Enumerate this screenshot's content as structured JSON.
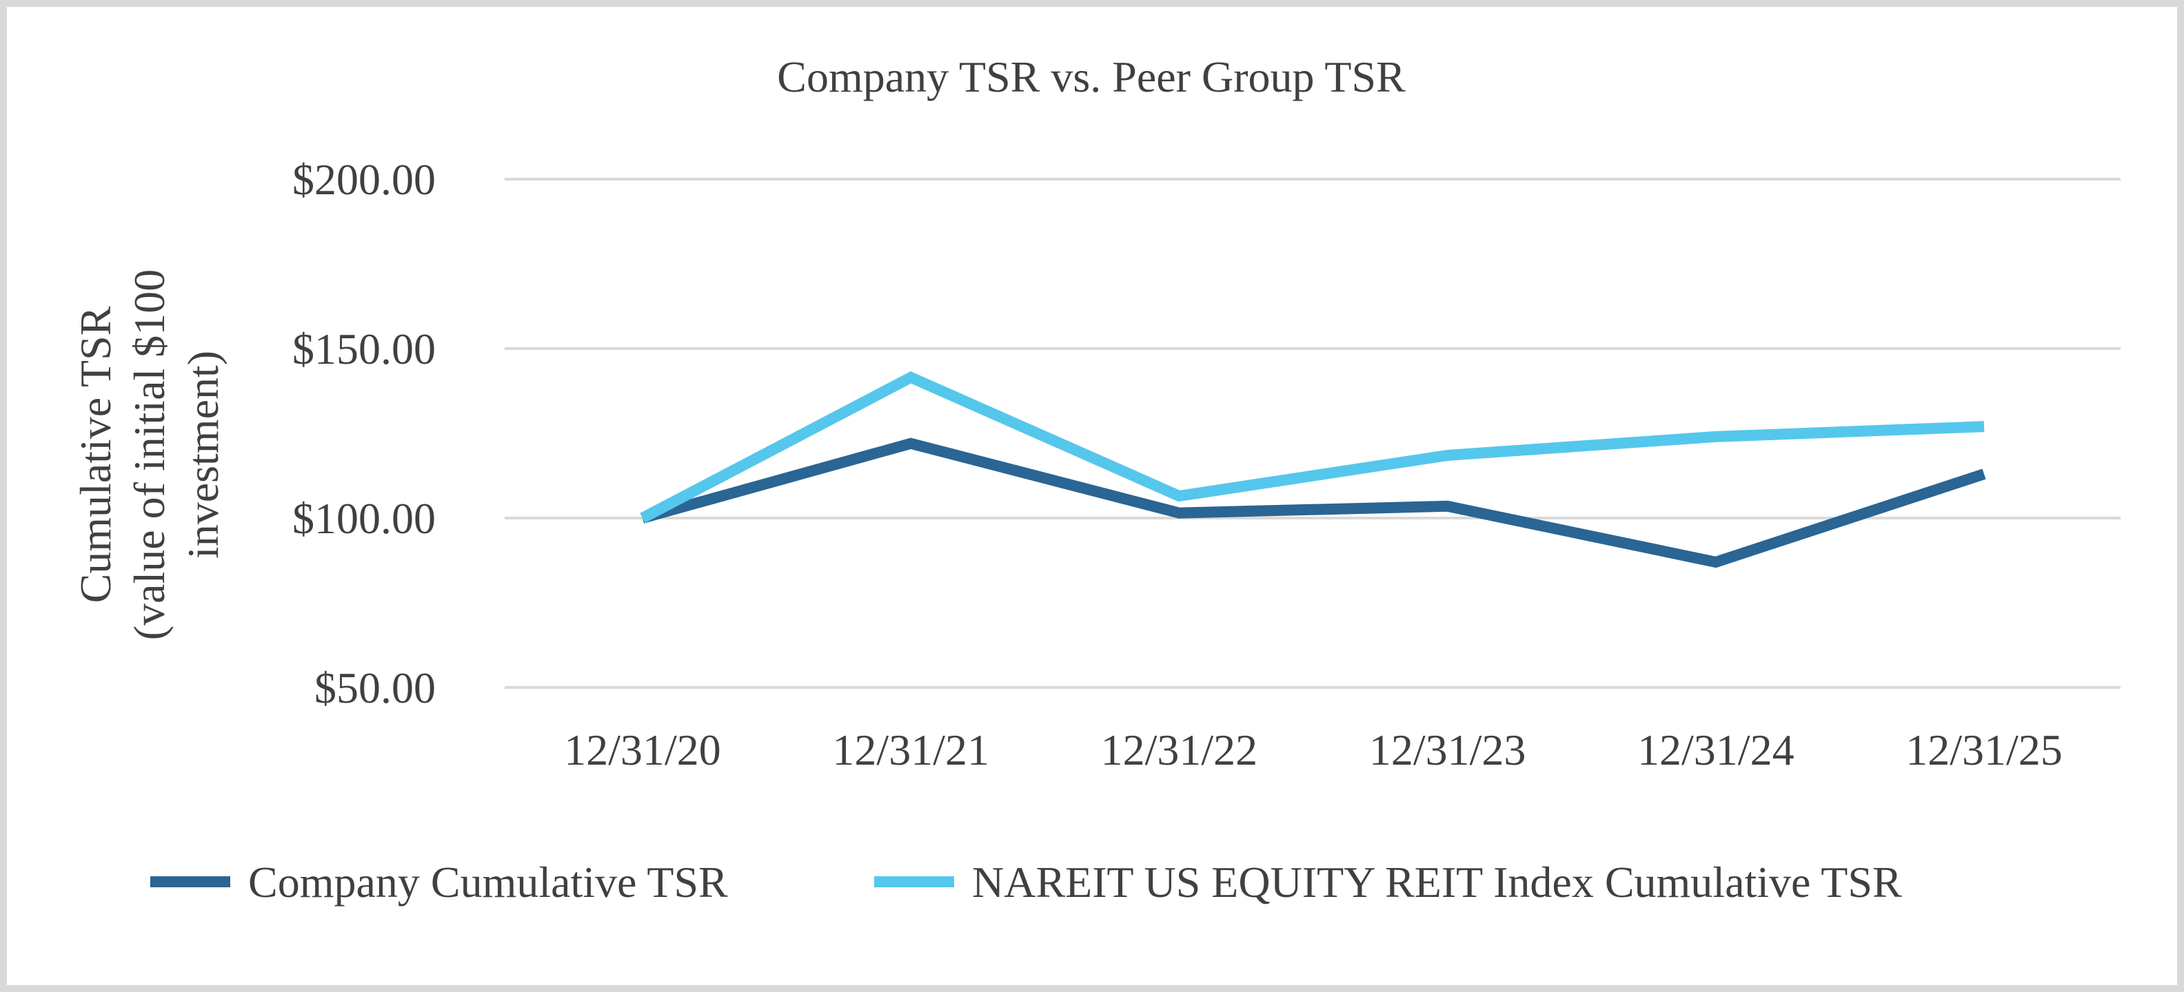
{
  "chart_data": {
    "type": "line",
    "title": "Company TSR vs. Peer Group TSR",
    "ylabel": [
      "Cumulative TSR",
      "(value of initial $100",
      "investment)"
    ],
    "xlabel": "",
    "categories": [
      "12/31/20",
      "12/31/21",
      "12/31/22",
      "12/31/23",
      "12/31/24",
      "12/31/25"
    ],
    "yticks": [
      "$50.00",
      "$100.00",
      "$150.00",
      "$200.00"
    ],
    "ytick_values": [
      50,
      100,
      150,
      200
    ],
    "ylim": [
      50,
      200
    ],
    "grid": true,
    "legend_position": "bottom",
    "series": [
      {
        "name": "Company Cumulative TSR",
        "color": "#2a6593",
        "values": [
          100.0,
          122.0,
          101.5,
          103.5,
          87.0,
          113.0
        ]
      },
      {
        "name": "NAREIT US EQUITY REIT Index Cumulative TSR",
        "color": "#55c7ec",
        "values": [
          100.0,
          141.5,
          106.5,
          118.5,
          124.0,
          127.0
        ]
      }
    ]
  }
}
